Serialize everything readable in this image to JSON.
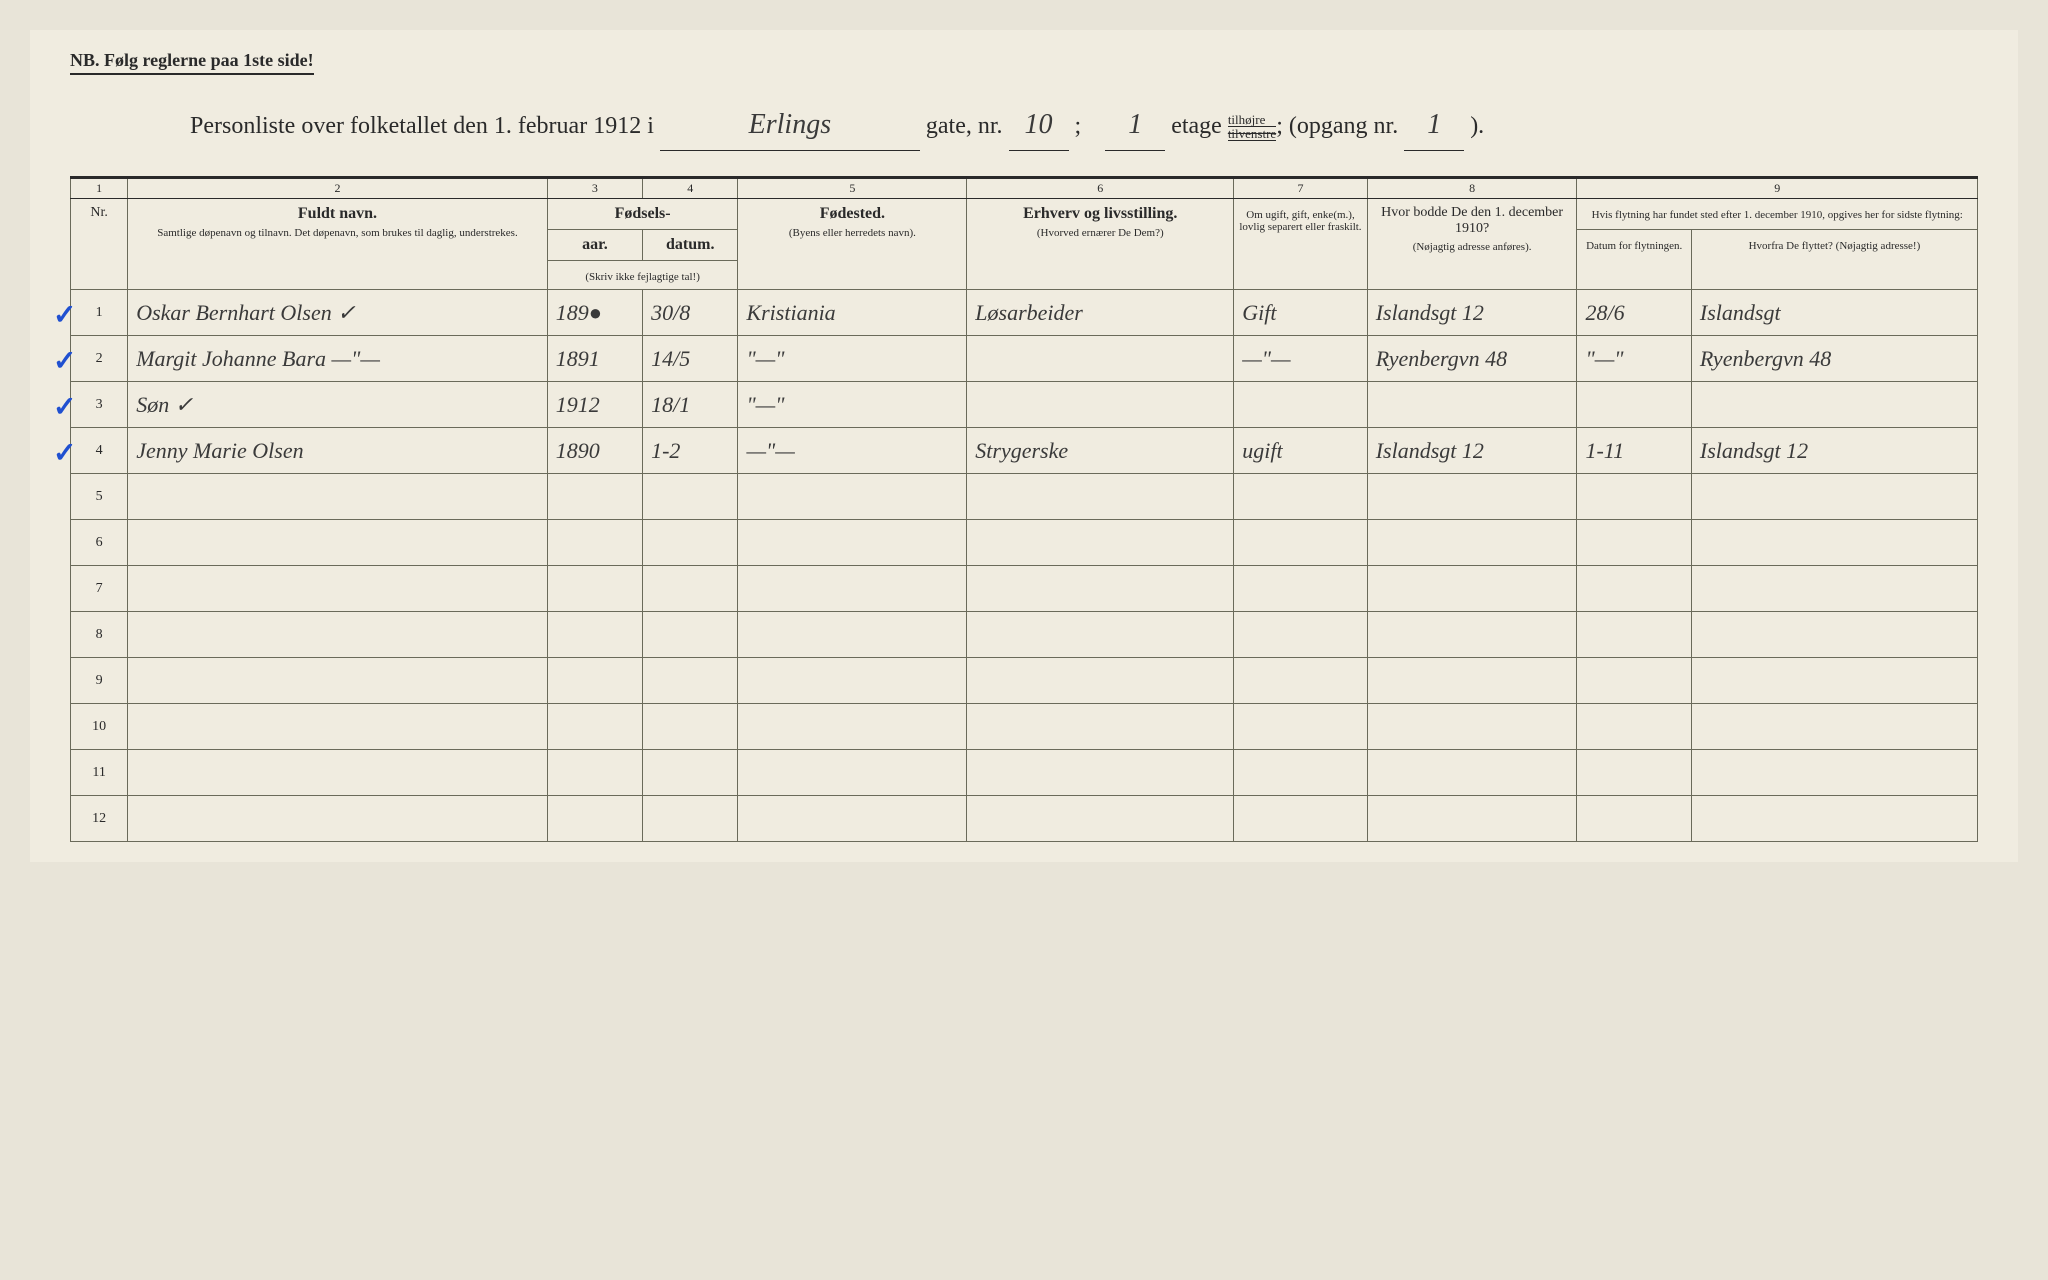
{
  "header": {
    "nb_text": "NB.  Følg reglerne paa 1ste side!",
    "title_prefix": "Personliste over folketallet den 1. februar 1912 i",
    "street_name": "Erlings",
    "gate_label": "gate, nr.",
    "gate_nr": "10",
    "semicolon": ";",
    "etage_nr": "1",
    "etage_label": "etage",
    "tilhojre": "tilhøjre",
    "tilvenstre": "tilvenstre",
    "opgang_label": "(opgang nr.",
    "opgang_nr": "1",
    "closing": ")."
  },
  "columns": {
    "c1": "1",
    "c2": "2",
    "c3": "3",
    "c4": "4",
    "c5": "5",
    "c6": "6",
    "c7": "7",
    "c8": "8",
    "c9": "9",
    "nr_label": "Nr.",
    "navn_label": "Fuldt navn.",
    "navn_sub": "Samtlige døpenavn og tilnavn. Det døpenavn, som brukes til daglig, understrekes.",
    "fodsels_label": "Fødsels-",
    "aar_label": "aar.",
    "datum_label": "datum.",
    "fodsels_sub": "(Skriv ikke fejlagtige tal!)",
    "fodested_label": "Fødested.",
    "fodested_sub": "(Byens eller herredets navn).",
    "erhverv_label": "Erhverv og livsstilling.",
    "erhverv_sub": "(Hvorved ernærer De Dem?)",
    "ugift_label": "Om ugift, gift, enke(m.), lovlig separert eller fraskilt.",
    "bodde_label": "Hvor bodde De den 1. december 1910?",
    "bodde_sub": "(Nøjagtig adresse anføres).",
    "flytning_label": "Hvis flytning har fundet sted efter 1. december 1910, opgives her for sidste flytning:",
    "flytning_datum": "Datum for flytningen.",
    "flytning_hvorfra": "Hvorfra De flyttet? (Nøjagtig adresse!)"
  },
  "rows": [
    {
      "nr": "1",
      "mark": true,
      "navn": "Oskar Bernhart Olsen ✓",
      "aar": "189●",
      "datum": "30/8",
      "fodested": "Kristiania",
      "erhverv": "Løsarbeider",
      "status": "Gift",
      "bodde": "Islandsgt 12",
      "flyt_datum": "28/6",
      "flyt_fra": "Islandsgt"
    },
    {
      "nr": "2",
      "mark": true,
      "navn": "Margit Johanne Bara  —\"—",
      "aar": "1891",
      "datum": "14/5",
      "fodested": "\"—\"",
      "erhverv": "",
      "status": "—\"—",
      "bodde": "Ryenbergvn 48",
      "flyt_datum": "\"—\"",
      "flyt_fra": "Ryenbergvn 48"
    },
    {
      "nr": "3",
      "mark": true,
      "navn": "Søn ✓",
      "aar": "1912",
      "datum": "18/1",
      "fodested": "\"—\"",
      "erhverv": "",
      "status": "",
      "bodde": "",
      "flyt_datum": "",
      "flyt_fra": ""
    },
    {
      "nr": "4",
      "mark": true,
      "navn": "Jenny Marie Olsen",
      "aar": "1890",
      "datum": "1-2",
      "fodested": "—\"—",
      "erhverv": "Strygerske",
      "status": "ugift",
      "bodde": "Islandsgt 12",
      "flyt_datum": "1-11",
      "flyt_fra": "Islandsgt 12"
    },
    {
      "nr": "5",
      "mark": false,
      "navn": "",
      "aar": "",
      "datum": "",
      "fodested": "",
      "erhverv": "",
      "status": "",
      "bodde": "",
      "flyt_datum": "",
      "flyt_fra": ""
    },
    {
      "nr": "6",
      "mark": false,
      "navn": "",
      "aar": "",
      "datum": "",
      "fodested": "",
      "erhverv": "",
      "status": "",
      "bodde": "",
      "flyt_datum": "",
      "flyt_fra": ""
    },
    {
      "nr": "7",
      "mark": false,
      "navn": "",
      "aar": "",
      "datum": "",
      "fodested": "",
      "erhverv": "",
      "status": "",
      "bodde": "",
      "flyt_datum": "",
      "flyt_fra": ""
    },
    {
      "nr": "8",
      "mark": false,
      "navn": "",
      "aar": "",
      "datum": "",
      "fodested": "",
      "erhverv": "",
      "status": "",
      "bodde": "",
      "flyt_datum": "",
      "flyt_fra": ""
    },
    {
      "nr": "9",
      "mark": false,
      "navn": "",
      "aar": "",
      "datum": "",
      "fodested": "",
      "erhverv": "",
      "status": "",
      "bodde": "",
      "flyt_datum": "",
      "flyt_fra": ""
    },
    {
      "nr": "10",
      "mark": false,
      "navn": "",
      "aar": "",
      "datum": "",
      "fodested": "",
      "erhverv": "",
      "status": "",
      "bodde": "",
      "flyt_datum": "",
      "flyt_fra": ""
    },
    {
      "nr": "11",
      "mark": false,
      "navn": "",
      "aar": "",
      "datum": "",
      "fodested": "",
      "erhverv": "",
      "status": "",
      "bodde": "",
      "flyt_datum": "",
      "flyt_fra": ""
    },
    {
      "nr": "12",
      "mark": false,
      "navn": "",
      "aar": "",
      "datum": "",
      "fodested": "",
      "erhverv": "",
      "status": "",
      "bodde": "",
      "flyt_datum": "",
      "flyt_fra": ""
    }
  ],
  "column_widths": {
    "nr": "3%",
    "navn": "22%",
    "aar": "5%",
    "datum": "5%",
    "fodested": "12%",
    "erhverv": "14%",
    "status": "7%",
    "bodde": "11%",
    "flyt_datum": "6%",
    "flyt_fra": "15%"
  },
  "colors": {
    "page_bg": "#f0ece0",
    "text": "#2a2a2a",
    "blue_mark": "#2050d0"
  }
}
